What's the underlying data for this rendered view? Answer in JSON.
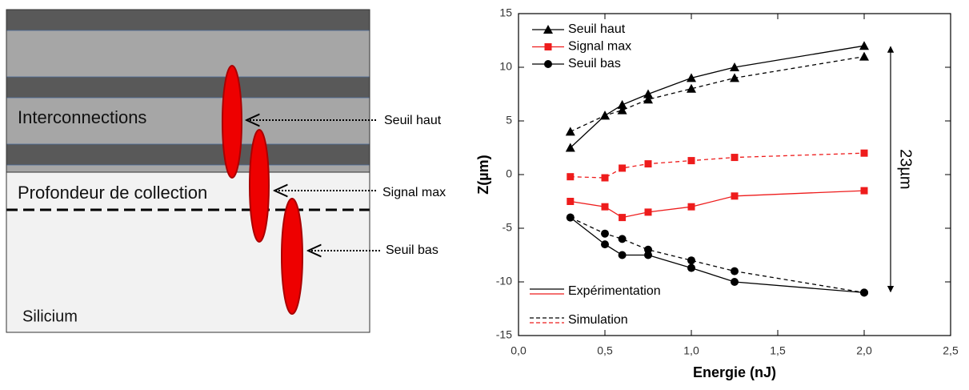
{
  "diagram": {
    "layers": [
      "Interconnections",
      "Profondeur de collection",
      "Silicium"
    ],
    "arrows": [
      "Seuil haut",
      "Signal max",
      "Seuil bas"
    ]
  },
  "chart_data": {
    "type": "line",
    "x_label": "Energie (nJ)",
    "y_label": "Z(µm)",
    "x": [
      0.3,
      0.5,
      0.6,
      0.75,
      1.0,
      1.25,
      2.0
    ],
    "series": [
      {
        "name": "Seuil haut",
        "color": "#000000",
        "marker": "triangle",
        "values": [
          2.5,
          5.5,
          6.5,
          7.5,
          9,
          10,
          12
        ],
        "sim_values": [
          4,
          5.5,
          6,
          7,
          8,
          9,
          11
        ]
      },
      {
        "name": "Signal max",
        "color": "#ee1c1c",
        "marker": "square",
        "values": [
          -2.5,
          -3,
          -4,
          -3.5,
          -3,
          -2,
          -1.5
        ],
        "sim_values": [
          -0.2,
          -0.3,
          0.6,
          1,
          1.3,
          1.6,
          2
        ]
      },
      {
        "name": "Seuil bas",
        "color": "#000000",
        "marker": "circle",
        "values": [
          -4,
          -6.5,
          -7.5,
          -7.5,
          -8.7,
          -10,
          -11
        ],
        "sim_values": [
          -4,
          -5.5,
          -6,
          -7,
          -8,
          -9,
          -11
        ]
      }
    ],
    "line_styles": [
      {
        "name": "Expérimentation",
        "dashed": false
      },
      {
        "name": "Simulation",
        "dashed": true
      }
    ],
    "annotation": "23µm",
    "xlim": [
      0,
      2.5
    ],
    "xticks": [
      {
        "value": 0,
        "label": "0,0"
      },
      {
        "value": 0.5,
        "label": "0,5"
      },
      {
        "value": 1,
        "label": "1,0"
      },
      {
        "value": 1.5,
        "label": "1,5"
      },
      {
        "value": 2,
        "label": "2,0"
      },
      {
        "value": 2.5,
        "label": "2,5"
      }
    ],
    "ylim": [
      -15,
      15
    ],
    "yticks": [
      -15,
      -10,
      -5,
      0,
      5,
      10,
      15
    ]
  }
}
